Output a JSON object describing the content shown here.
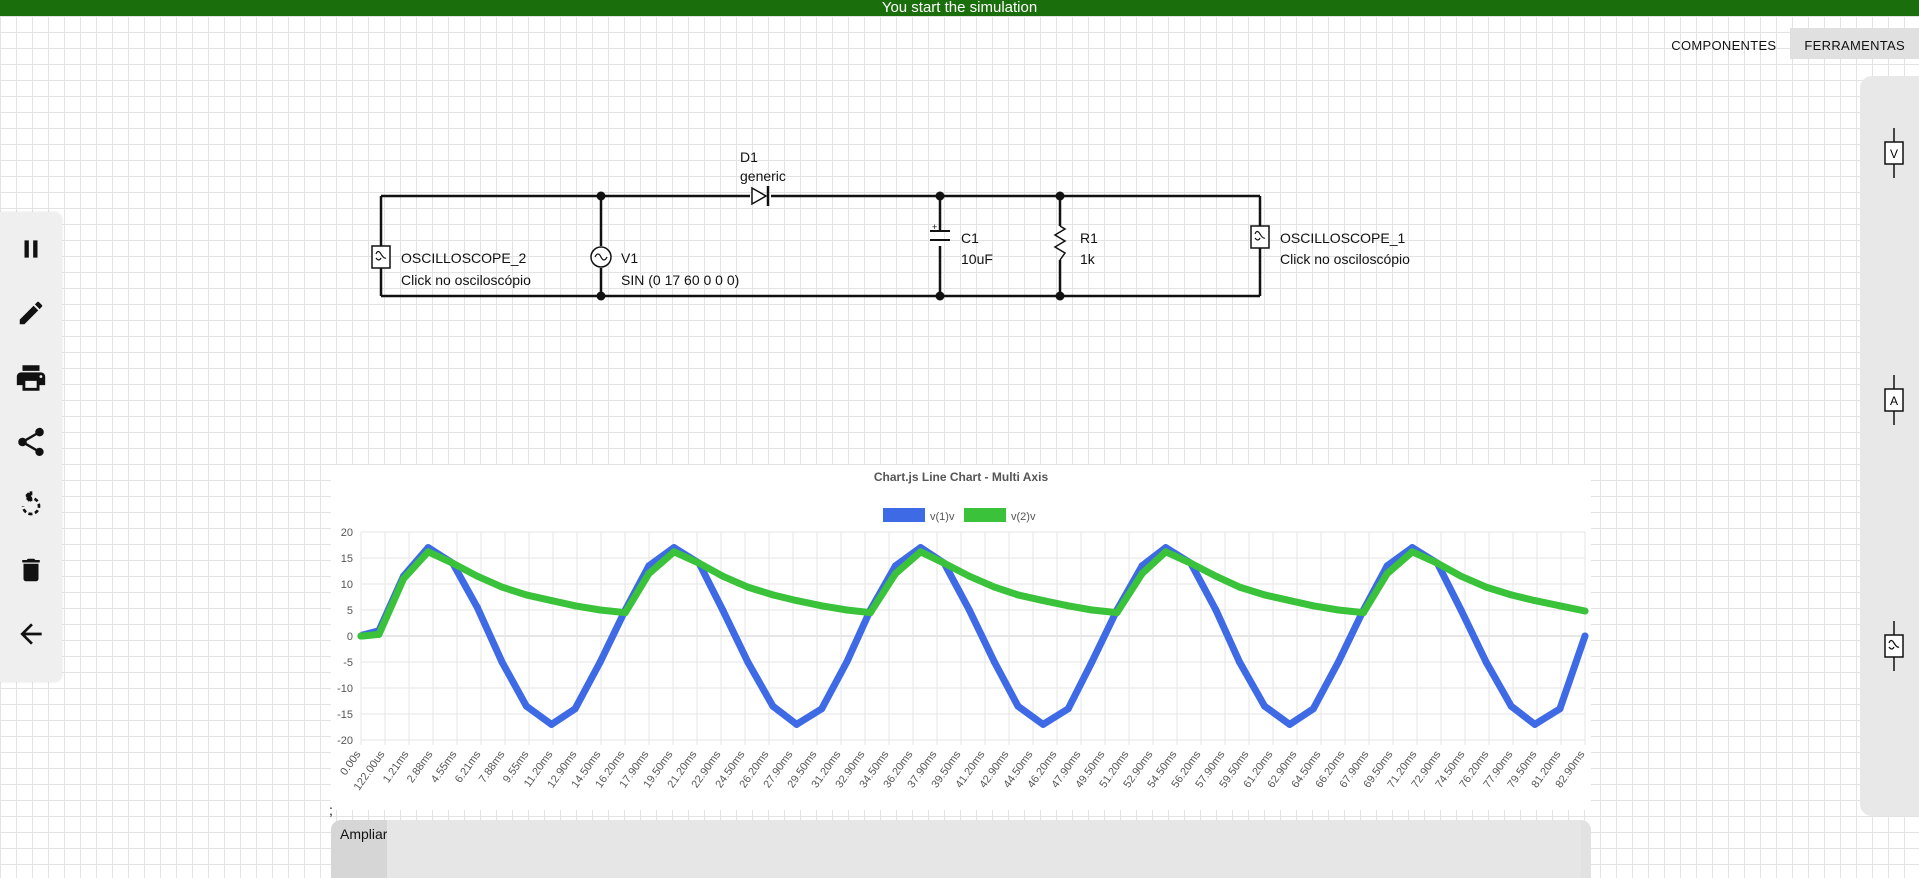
{
  "topbar": {
    "message": "You start the simulation"
  },
  "tabs": [
    {
      "label": "COMPONENTES"
    },
    {
      "label": "FERRAMENTAS"
    }
  ],
  "toolbar": {
    "items": [
      {
        "name": "pause-icon"
      },
      {
        "name": "pencil-icon"
      },
      {
        "name": "print-icon"
      },
      {
        "name": "share-icon"
      },
      {
        "name": "rotate-icon"
      },
      {
        "name": "trash-icon"
      },
      {
        "name": "back-arrow-icon"
      }
    ]
  },
  "right_panel": {
    "items": [
      {
        "name": "voltmeter-icon",
        "glyph": "V"
      },
      {
        "name": "ammeter-icon",
        "glyph": "A"
      },
      {
        "name": "oscilloscope-icon",
        "glyph": "~"
      }
    ]
  },
  "circuit": {
    "diode": {
      "name": "D1",
      "model": "generic"
    },
    "source": {
      "name": "V1",
      "value": "SIN (0 17 60 0 0 0)"
    },
    "capacitor": {
      "name": "C1",
      "value": "10uF",
      "polarity": "+"
    },
    "resistor": {
      "name": "R1",
      "value": "1k"
    },
    "osc2": {
      "name": "OSCILLOSCOPE_2",
      "hint": "Click no osciloscópio"
    },
    "osc1": {
      "name": "OSCILLOSCOPE_1",
      "hint": "Click no osciloscópio"
    }
  },
  "colors": {
    "v1": "#3e6ae6",
    "v2": "#39c23a",
    "topbar": "#1b6e0c"
  },
  "chart_data": {
    "type": "line",
    "title": "Chart.js Line Chart - Multi Axis",
    "legend": {
      "position": "top",
      "entries": [
        "v(1)v",
        "v(2)v"
      ]
    },
    "ylim": [
      -20,
      20
    ],
    "yticks": [
      20,
      15,
      10,
      5,
      0,
      -5,
      -10,
      -15,
      -20
    ],
    "grid": true,
    "x_tick_labels": [
      "0.00s",
      "122.00us",
      "1.21ms",
      "2.88ms",
      "4.55ms",
      "6.21ms",
      "7.88ms",
      "9.55ms",
      "11.20ms",
      "12.90ms",
      "14.50ms",
      "16.20ms",
      "17.90ms",
      "19.50ms",
      "21.20ms",
      "22.90ms",
      "24.50ms",
      "26.20ms",
      "27.90ms",
      "29.50ms",
      "31.20ms",
      "32.90ms",
      "34.50ms",
      "36.20ms",
      "37.90ms",
      "39.50ms",
      "41.20ms",
      "42.90ms",
      "44.50ms",
      "46.20ms",
      "47.90ms",
      "49.50ms",
      "51.20ms",
      "52.90ms",
      "54.50ms",
      "56.20ms",
      "57.90ms",
      "59.50ms",
      "61.20ms",
      "62.90ms",
      "64.50ms",
      "66.20ms",
      "67.90ms",
      "69.50ms",
      "71.20ms",
      "72.90ms",
      "74.50ms",
      "76.20ms",
      "77.90ms",
      "79.50ms",
      "81.20ms",
      "82.90ms"
    ],
    "series": [
      {
        "name": "v(1)v",
        "x": [
          0,
          0.12,
          1.21,
          2.88,
          4.55,
          6.21,
          7.88,
          9.55,
          11.2,
          12.9,
          14.5,
          16.2,
          17.9,
          19.5,
          21.2,
          22.9,
          24.5,
          26.2,
          27.9,
          29.5,
          31.2,
          32.9,
          34.5,
          36.2,
          37.9,
          39.5,
          41.2,
          42.9,
          44.5,
          46.2,
          47.9,
          49.5,
          51.2,
          52.9,
          54.5,
          56.2,
          57.9,
          59.5,
          61.2,
          62.9,
          64.5,
          66.2,
          67.9,
          69.5,
          71.2,
          72.9,
          74.5,
          76.2,
          77.9,
          79.5,
          81.2,
          82.9
        ],
        "values": [
          0,
          0.2,
          1.0,
          11.5,
          17.0,
          14.0,
          5.5,
          -5.0,
          -13.5,
          -17.0,
          -14.0,
          -5.0,
          5.0,
          13.5,
          17.0,
          14.0,
          5.0,
          -5.0,
          -13.5,
          -17.0,
          -14.0,
          -5.0,
          5.0,
          13.5,
          17.0,
          14.0,
          5.0,
          -5.0,
          -13.5,
          -17.0,
          -14.0,
          -5.0,
          5.0,
          13.5,
          17.0,
          14.0,
          5.0,
          -5.0,
          -13.5,
          -17.0,
          -14.0,
          -5.0,
          5.0,
          13.5,
          17.0,
          14.0,
          5.0,
          -5.0,
          -13.5,
          -17.0,
          -14.0,
          0.0
        ]
      },
      {
        "name": "v(2)v",
        "x": [
          0,
          0.12,
          1.21,
          2.88,
          4.55,
          6.21,
          7.88,
          9.55,
          11.2,
          12.9,
          14.5,
          16.2,
          17.9,
          19.5,
          21.2,
          22.9,
          24.5,
          26.2,
          27.9,
          29.5,
          31.2,
          32.9,
          34.5,
          36.2,
          37.9,
          39.5,
          41.2,
          42.9,
          44.5,
          46.2,
          47.9,
          49.5,
          51.2,
          52.9,
          54.5,
          56.2,
          57.9,
          59.5,
          61.2,
          62.9,
          64.5,
          66.2,
          67.9,
          69.5,
          71.2,
          72.9,
          74.5,
          76.2,
          77.9,
          79.5,
          81.2,
          82.9
        ],
        "values": [
          0,
          0,
          0.3,
          11.0,
          16.2,
          14.0,
          11.5,
          9.4,
          7.9,
          6.8,
          5.8,
          5.0,
          4.5,
          12.0,
          16.2,
          14.0,
          11.5,
          9.4,
          7.9,
          6.8,
          5.8,
          5.0,
          4.5,
          12.0,
          16.2,
          14.0,
          11.5,
          9.4,
          7.9,
          6.8,
          5.8,
          5.0,
          4.5,
          12.0,
          16.2,
          14.0,
          11.5,
          9.4,
          7.9,
          6.8,
          5.8,
          5.0,
          4.5,
          12.0,
          16.2,
          14.0,
          11.5,
          9.4,
          7.9,
          6.8,
          5.8,
          4.8
        ]
      }
    ]
  },
  "footer": {
    "separator": ";",
    "expand_label": "Ampliar"
  }
}
